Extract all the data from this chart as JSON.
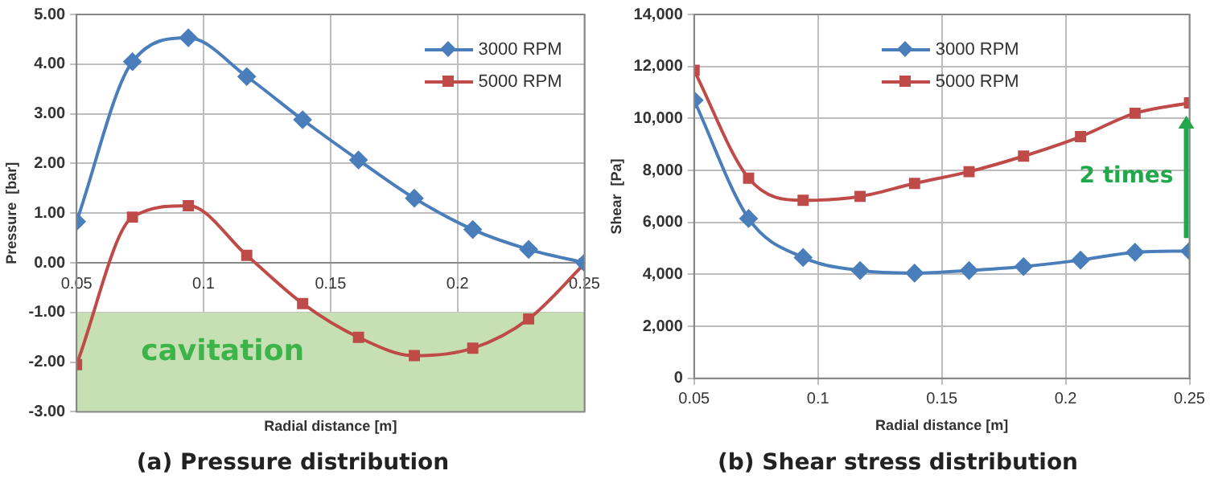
{
  "chart_data": [
    {
      "type": "line",
      "title": "(a) Pressure distribution",
      "xlabel": "Radial distance [m]",
      "ylabel": "Pressure  [bar]",
      "x": [
        0.05,
        0.072,
        0.094,
        0.117,
        0.139,
        0.161,
        0.183,
        0.206,
        0.228,
        0.25
      ],
      "series": [
        {
          "name": "3000 RPM",
          "color": "#4a7ebb",
          "marker": "diamond",
          "values": [
            0.83,
            4.05,
            4.53,
            3.75,
            2.88,
            2.07,
            1.3,
            0.67,
            0.27,
            0.0
          ]
        },
        {
          "name": "5000 RPM",
          "color": "#be4b48",
          "marker": "square",
          "values": [
            -2.05,
            0.92,
            1.15,
            0.15,
            -0.82,
            -1.5,
            -1.87,
            -1.72,
            -1.13,
            -0.02
          ]
        }
      ],
      "xlim": [
        0.05,
        0.25
      ],
      "xticks": [
        0.05,
        0.1,
        0.15,
        0.2,
        0.25
      ],
      "ylim": [
        -3,
        5
      ],
      "yticks": [
        {
          "value": -3,
          "label": "-3.00"
        },
        {
          "value": -2,
          "label": "-2.00"
        },
        {
          "value": -1,
          "label": "-1.00"
        },
        {
          "value": 0,
          "label": "0.00"
        },
        {
          "value": 1,
          "label": "1.00"
        },
        {
          "value": 2,
          "label": "2.00"
        },
        {
          "value": 3,
          "label": "3.00"
        },
        {
          "value": 4,
          "label": "4.00"
        },
        {
          "value": 5,
          "label": "5.00"
        }
      ],
      "bands": [
        {
          "axis": "y",
          "from": -3,
          "to": -1,
          "label": "cavitation",
          "color": "#c6e0b4"
        }
      ],
      "grid": true,
      "legend": "top right"
    },
    {
      "type": "line",
      "title": "(b) Shear stress distribution",
      "xlabel": "Radial distance [m]",
      "ylabel": "Shear  [Pa]",
      "x": [
        0.05,
        0.072,
        0.094,
        0.117,
        0.139,
        0.161,
        0.183,
        0.206,
        0.228,
        0.25
      ],
      "series": [
        {
          "name": "3000 RPM",
          "color": "#4a7ebb",
          "marker": "diamond",
          "values": [
            10700,
            6150,
            4650,
            4150,
            4050,
            4150,
            4300,
            4550,
            4850,
            4900
          ]
        },
        {
          "name": "5000 RPM",
          "color": "#be4b48",
          "marker": "square",
          "values": [
            11850,
            7700,
            6850,
            7000,
            7500,
            7950,
            8550,
            9300,
            10200,
            10600
          ]
        }
      ],
      "xlim": [
        0.05,
        0.25
      ],
      "xticks": [
        0.05,
        0.1,
        0.15,
        0.2,
        0.25
      ],
      "ylim": [
        0,
        14000
      ],
      "yticks": [
        0,
        {
          "value": 2000,
          "label": "2,000"
        },
        {
          "value": 4000,
          "label": "4,000"
        },
        {
          "value": 6000,
          "label": "6,000"
        },
        {
          "value": 8000,
          "label": "8,000"
        },
        {
          "value": 10000,
          "label": "10,000"
        },
        {
          "value": 12000,
          "label": "12,000"
        },
        {
          "value": 14000,
          "label": "14,000"
        }
      ],
      "annotations": [
        "2 times"
      ],
      "grid": true,
      "legend": "top"
    }
  ]
}
